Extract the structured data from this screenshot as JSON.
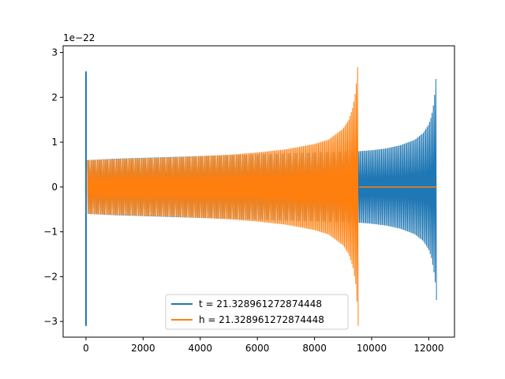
{
  "chart_data": {
    "type": "line",
    "title": "",
    "xlabel": "",
    "ylabel": "",
    "y_offset_label": "1e−22",
    "xlim": [
      -800,
      12900
    ],
    "ylim": [
      -3.35,
      3.15
    ],
    "xticks": [
      0,
      2000,
      4000,
      6000,
      8000,
      10000,
      12000
    ],
    "yticks": [
      -3,
      -2,
      -1,
      0,
      1,
      2,
      3
    ],
    "ytick_labels": [
      "−3",
      "−2",
      "−1",
      "0",
      "1",
      "2",
      "3"
    ],
    "grid": false,
    "legend_position": "bottom-center",
    "series": [
      {
        "name": "t = 21.328961272874448",
        "color": "#1f77b4",
        "envelope": {
          "x": [
            50,
            1000,
            2000,
            3000,
            4000,
            5000,
            6000,
            7000,
            8000,
            9000,
            9600,
            10000,
            10500,
            11000,
            11500,
            11800,
            12000,
            12100,
            12180,
            12240,
            12260,
            12280
          ],
          "upper": [
            0.6,
            0.63,
            0.65,
            0.67,
            0.69,
            0.71,
            0.73,
            0.75,
            0.77,
            0.79,
            0.8,
            0.82,
            0.86,
            0.93,
            1.05,
            1.2,
            1.4,
            1.6,
            1.9,
            2.3,
            2.6,
            2.9
          ],
          "lower": [
            -0.6,
            -0.63,
            -0.65,
            -0.67,
            -0.69,
            -0.71,
            -0.73,
            -0.75,
            -0.77,
            -0.79,
            -0.8,
            -0.82,
            -0.86,
            -0.93,
            -1.05,
            -1.2,
            -1.4,
            -1.6,
            -1.9,
            -2.2,
            -2.5,
            -2.55
          ]
        },
        "spike": {
          "x": 0,
          "max": 2.58,
          "min": -3.1
        }
      },
      {
        "name": "h = 21.328961272874448",
        "color": "#ff7f0e",
        "envelope": {
          "x": [
            50,
            1000,
            2000,
            3000,
            4000,
            5000,
            6000,
            7000,
            8000,
            8500,
            9000,
            9200,
            9350,
            9450,
            9500,
            9530
          ],
          "upper": [
            0.6,
            0.62,
            0.64,
            0.66,
            0.69,
            0.72,
            0.77,
            0.84,
            0.96,
            1.06,
            1.3,
            1.5,
            1.8,
            2.2,
            2.6,
            2.9
          ],
          "lower": [
            -0.6,
            -0.62,
            -0.64,
            -0.66,
            -0.69,
            -0.72,
            -0.77,
            -0.84,
            -0.96,
            -1.06,
            -1.3,
            -1.5,
            -1.8,
            -2.2,
            -2.7,
            -3.1
          ]
        },
        "flat": {
          "x_start": 9560,
          "x_end": 12280,
          "value": 0.0
        }
      }
    ]
  }
}
